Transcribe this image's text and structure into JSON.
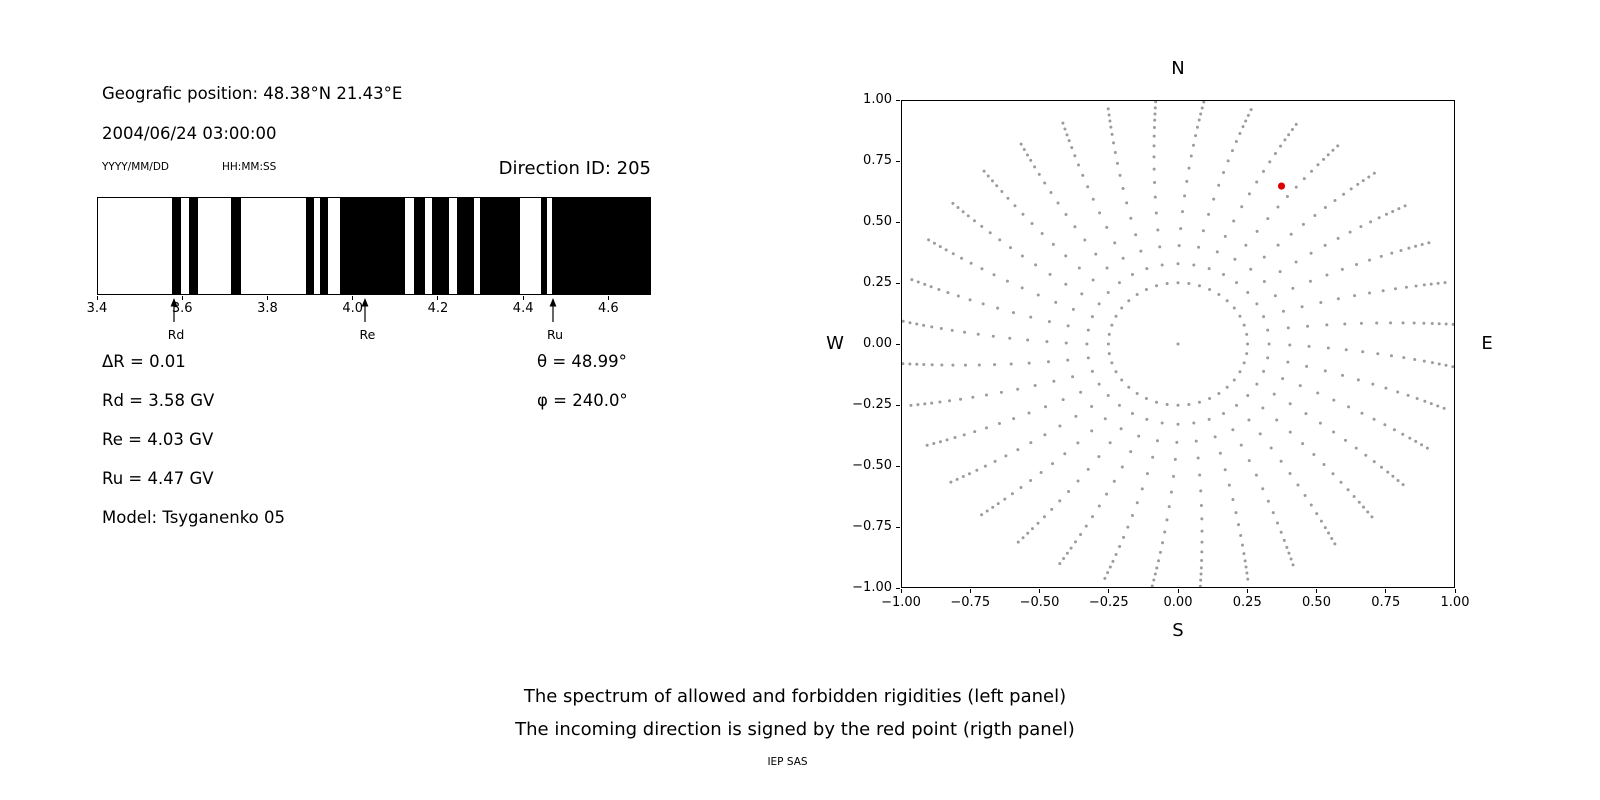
{
  "left_panel": {
    "position": "Geografic position: 48.38°N 21.43°E",
    "datetime": "2004/06/24 03:00:00",
    "date_format_label": "YYYY/MM/DD",
    "time_format_label": "HH:MM:SS",
    "direction_id": "Direction ID: 205",
    "delta_r": "ΔR = 0.01",
    "theta": "θ = 48.99°",
    "phi": "φ = 240.0°",
    "rd": "Rd = 3.58 GV",
    "re": "Re = 4.03 GV",
    "ru": "Ru = 4.47 GV",
    "model": "Model: Tsyganenko 05"
  },
  "captions": {
    "line1": "The spectrum of allowed and forbidden rigidities (left panel)",
    "line2": "The incoming direction is signed by the red point (rigth panel)",
    "credit": "IEP SAS"
  },
  "chart_data": [
    {
      "type": "heatmap",
      "description": "1-D barcode spectrum of rigidities; black bands = one state, white = the other",
      "xlim": [
        3.4,
        4.7
      ],
      "xticks": [
        {
          "v": 3.4,
          "label": "3.4"
        },
        {
          "v": 3.6,
          "label": "3.6"
        },
        {
          "v": 3.8,
          "label": "3.8"
        },
        {
          "v": 4.0,
          "label": "4.0"
        },
        {
          "v": 4.2,
          "label": "4.2"
        },
        {
          "v": 4.4,
          "label": "4.4"
        },
        {
          "v": 4.6,
          "label": "4.6"
        }
      ],
      "band_color": "#000000",
      "background_color": "#ffffff",
      "black_segments_gv": [
        [
          3.575,
          3.596
        ],
        [
          3.614,
          3.635
        ],
        [
          3.713,
          3.736
        ],
        [
          3.889,
          3.908
        ],
        [
          3.922,
          3.941
        ],
        [
          3.969,
          4.122
        ],
        [
          4.145,
          4.171
        ],
        [
          4.186,
          4.226
        ],
        [
          4.245,
          4.285
        ],
        [
          4.3,
          4.395
        ],
        [
          4.443,
          4.458
        ],
        [
          4.47,
          4.7
        ]
      ],
      "markers": [
        {
          "label": "Rd",
          "v": 3.58
        },
        {
          "label": "Re",
          "v": 4.03
        },
        {
          "label": "Ru",
          "v": 4.47
        }
      ]
    },
    {
      "type": "scatter",
      "description": "Sky map of trajectory directions: gray dots along 36 radial spokes plus an inner dotted ring; red dot marks incoming direction",
      "xlim": [
        -1,
        1
      ],
      "ylim": [
        -1,
        1
      ],
      "grid": false,
      "xticks": [
        {
          "v": -1.0,
          "label": "−1.00"
        },
        {
          "v": -0.75,
          "label": "−0.75"
        },
        {
          "v": -0.5,
          "label": "−0.50"
        },
        {
          "v": -0.25,
          "label": "−0.25"
        },
        {
          "v": 0.0,
          "label": "0.00"
        },
        {
          "v": 0.25,
          "label": "0.25"
        },
        {
          "v": 0.5,
          "label": "0.50"
        },
        {
          "v": 0.75,
          "label": "0.75"
        },
        {
          "v": 1.0,
          "label": "1.00"
        }
      ],
      "yticks": [
        {
          "v": 1.0,
          "label": "1.00"
        },
        {
          "v": 0.75,
          "label": "0.75"
        },
        {
          "v": 0.5,
          "label": "0.50"
        },
        {
          "v": 0.25,
          "label": "0.25"
        },
        {
          "v": 0.0,
          "label": "0.00"
        },
        {
          "v": -0.25,
          "label": "−0.25"
        },
        {
          "v": -0.5,
          "label": "−0.50"
        },
        {
          "v": -0.75,
          "label": "−0.75"
        },
        {
          "v": -1.0,
          "label": "−1.00"
        }
      ],
      "compass": {
        "top": "N",
        "bottom": "S",
        "left": "W",
        "right": "E"
      },
      "dot_color": "#909090",
      "dot_opacity": 0.9,
      "center_dot": [
        0,
        0
      ],
      "inner_ring": {
        "radius": 0.252,
        "count": 40
      },
      "spokes": {
        "count": 36,
        "start_deg": 0,
        "step_deg": 10,
        "spiral_deg": -8,
        "radii": [
          0.33,
          0.405,
          0.475,
          0.545,
          0.61,
          0.67,
          0.725,
          0.775,
          0.82,
          0.86,
          0.895,
          0.925,
          0.95,
          0.975,
          1.0
        ]
      },
      "red_point": {
        "x": 0.375,
        "y": 0.65,
        "color": "#dd0000"
      }
    }
  ]
}
